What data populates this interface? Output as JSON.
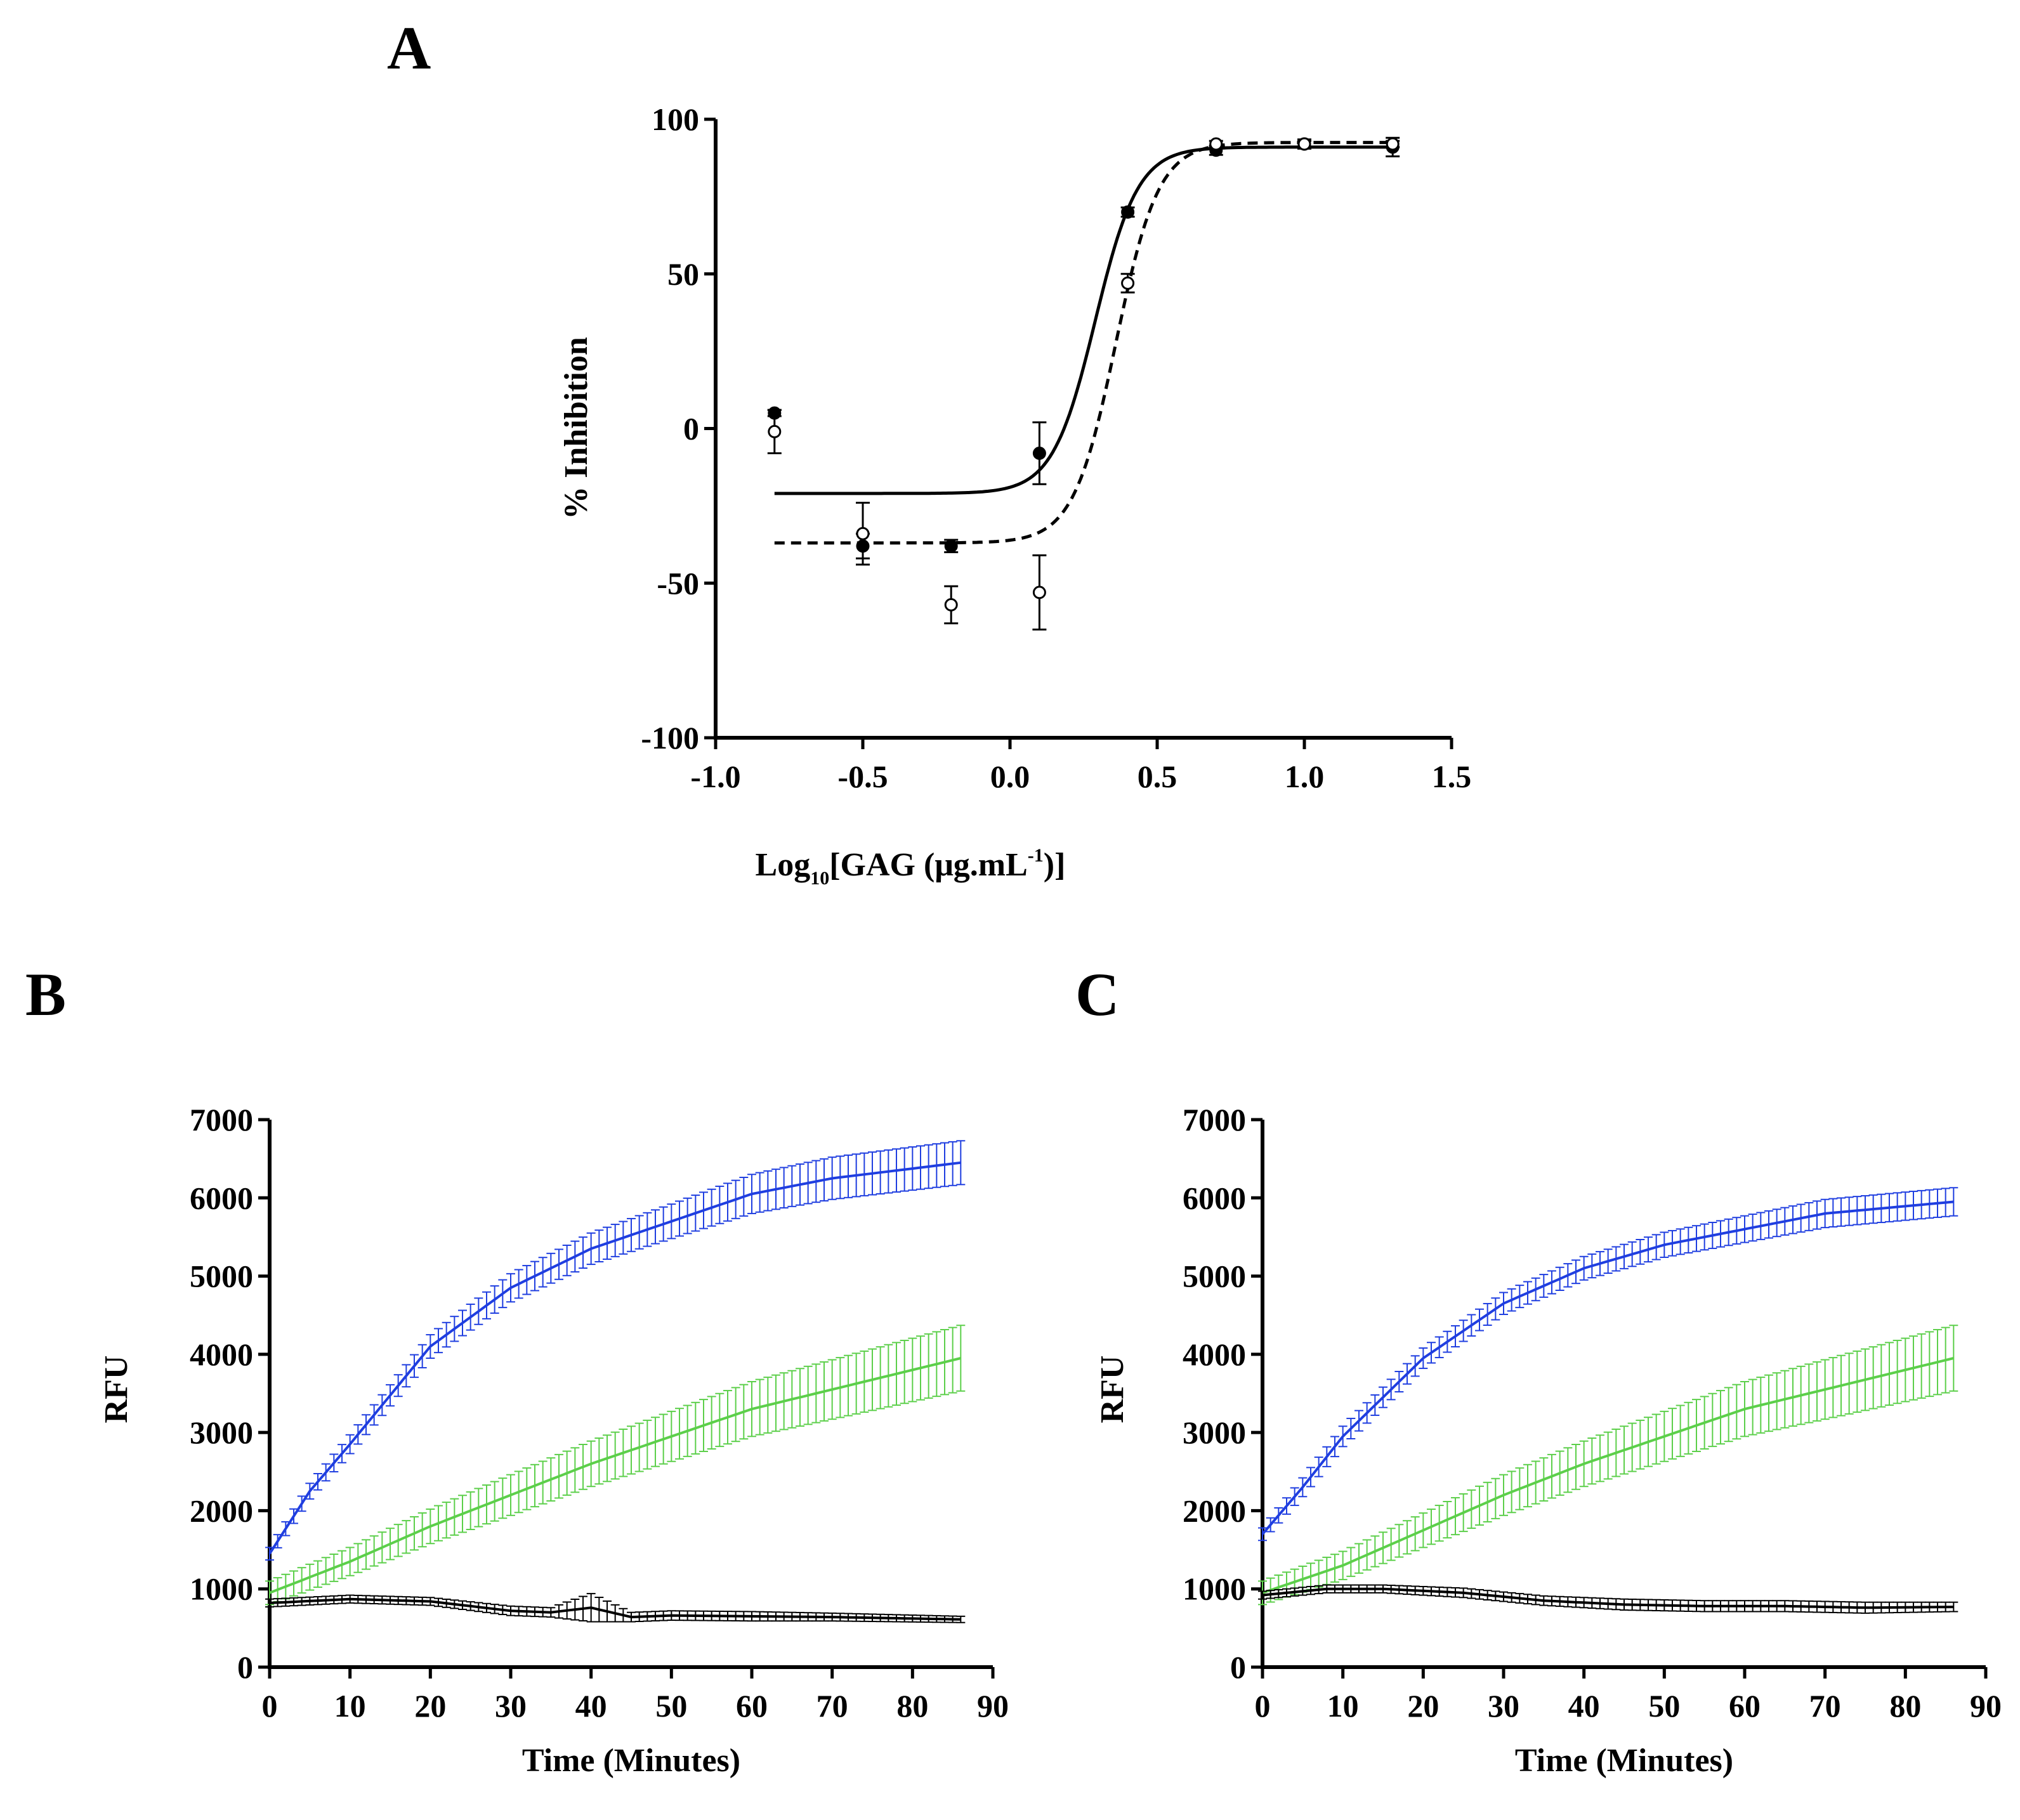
{
  "figure": {
    "colors": {
      "axis": "#000000",
      "blue": "#1f3ee0",
      "green": "#5ccf4a",
      "black": "#000000"
    }
  },
  "chart_data": [
    {
      "panel": "A",
      "type": "scatter",
      "title": "",
      "xlabel": {
        "prefix": "Log",
        "subscript": "10",
        "main": "[GAG (μg.mL",
        "superscript": "-1",
        "suffix": ")]"
      },
      "ylabel": "% Inhibition",
      "xlim": [
        -1.0,
        1.5
      ],
      "ylim": [
        -100,
        100
      ],
      "xticks": [
        -1.0,
        -0.5,
        0.0,
        0.5,
        1.0,
        1.5
      ],
      "xtick_labels": [
        "-1.0",
        "-0.5",
        "0.0",
        "0.5",
        "1.0",
        "1.5"
      ],
      "yticks": [
        -100,
        -50,
        0,
        50,
        100
      ],
      "ytick_labels": [
        "-100",
        "-50",
        "0",
        "50",
        "100"
      ],
      "series": [
        {
          "name": "filled",
          "marker": "filled-circle",
          "line": "solid",
          "x": [
            -0.8,
            -0.5,
            -0.2,
            0.1,
            0.4,
            0.7,
            1.0,
            1.3
          ],
          "y": [
            5,
            -38,
            -38,
            -8,
            70,
            90,
            92,
            91
          ],
          "err": [
            1,
            4,
            2,
            10,
            1.5,
            1.5,
            1.5,
            3
          ],
          "fit": {
            "bottom": -21,
            "top": 91,
            "logEC50": 0.29,
            "hill": 6
          }
        },
        {
          "name": "open",
          "marker": "open-circle",
          "line": "dashed",
          "x": [
            -0.8,
            -0.5,
            -0.2,
            0.1,
            0.4,
            0.7,
            1.0,
            1.3
          ],
          "y": [
            -1,
            -34,
            -57,
            -53,
            47,
            92,
            92,
            92
          ],
          "err": [
            7,
            10,
            6,
            12,
            3,
            1,
            1,
            1
          ],
          "fit": {
            "bottom": -37,
            "top": 92.5,
            "logEC50": 0.36,
            "hill": 6
          }
        }
      ]
    },
    {
      "panel": "B",
      "type": "line",
      "title": "",
      "xlabel": "Time (Minutes)",
      "ylabel": "RFU",
      "xlim": [
        0,
        90
      ],
      "ylim": [
        0,
        7000
      ],
      "xticks": [
        0,
        10,
        20,
        30,
        40,
        50,
        60,
        70,
        80,
        90
      ],
      "xtick_labels": [
        "0",
        "10",
        "20",
        "30",
        "40",
        "50",
        "60",
        "70",
        "80",
        "90"
      ],
      "yticks": [
        0,
        1000,
        2000,
        3000,
        4000,
        5000,
        6000,
        7000
      ],
      "ytick_labels": [
        "0",
        "1000",
        "2000",
        "3000",
        "4000",
        "5000",
        "6000",
        "7000"
      ],
      "x_step": 1,
      "series": [
        {
          "name": "blue",
          "color": "blue",
          "key_x": [
            0,
            5,
            10,
            20,
            30,
            40,
            50,
            60,
            70,
            86
          ],
          "key_y": [
            1450,
            2250,
            2850,
            4100,
            4850,
            5350,
            5700,
            6050,
            6250,
            6450
          ],
          "key_err": [
            80,
            100,
            120,
            150,
            180,
            200,
            220,
            250,
            270,
            280
          ]
        },
        {
          "name": "green",
          "color": "green",
          "key_x": [
            0,
            10,
            20,
            30,
            40,
            50,
            60,
            70,
            86
          ],
          "key_y": [
            950,
            1350,
            1800,
            2200,
            2600,
            2950,
            3300,
            3550,
            3950
          ],
          "key_err": [
            150,
            180,
            220,
            260,
            290,
            320,
            350,
            380,
            420
          ]
        },
        {
          "name": "black",
          "color": "black",
          "key_x": [
            0,
            10,
            20,
            30,
            35,
            40,
            45,
            50,
            60,
            70,
            86
          ],
          "key_y": [
            820,
            870,
            840,
            720,
            700,
            760,
            640,
            660,
            650,
            640,
            610
          ],
          "key_err": [
            50,
            50,
            50,
            60,
            60,
            180,
            60,
            60,
            60,
            50,
            40
          ]
        }
      ]
    },
    {
      "panel": "C",
      "type": "line",
      "title": "",
      "xlabel": "Time (Minutes)",
      "ylabel": "RFU",
      "xlim": [
        0,
        90
      ],
      "ylim": [
        0,
        7000
      ],
      "xticks": [
        0,
        10,
        20,
        30,
        40,
        50,
        60,
        70,
        80,
        90
      ],
      "xtick_labels": [
        "0",
        "10",
        "20",
        "30",
        "40",
        "50",
        "60",
        "70",
        "80",
        "90"
      ],
      "yticks": [
        0,
        1000,
        2000,
        3000,
        4000,
        5000,
        6000,
        7000
      ],
      "ytick_labels": [
        "0",
        "1000",
        "2000",
        "3000",
        "4000",
        "5000",
        "6000",
        "7000"
      ],
      "x_step": 1,
      "series": [
        {
          "name": "blue",
          "color": "blue",
          "key_x": [
            0,
            5,
            10,
            20,
            30,
            40,
            50,
            60,
            70,
            86
          ],
          "key_y": [
            1700,
            2300,
            2950,
            3950,
            4650,
            5100,
            5400,
            5600,
            5800,
            5950
          ],
          "key_err": [
            80,
            120,
            130,
            130,
            140,
            150,
            160,
            170,
            180,
            180
          ]
        },
        {
          "name": "green",
          "color": "green",
          "key_x": [
            0,
            10,
            20,
            30,
            40,
            50,
            60,
            70,
            86
          ],
          "key_y": [
            950,
            1300,
            1750,
            2200,
            2600,
            2950,
            3300,
            3550,
            3950
          ],
          "key_err": [
            150,
            180,
            220,
            260,
            290,
            320,
            350,
            380,
            420
          ]
        },
        {
          "name": "black",
          "color": "black",
          "key_x": [
            0,
            8,
            15,
            25,
            35,
            45,
            55,
            65,
            75,
            86
          ],
          "key_y": [
            920,
            1000,
            1000,
            950,
            850,
            800,
            780,
            780,
            760,
            770
          ],
          "key_err": [
            50,
            50,
            50,
            60,
            60,
            70,
            70,
            70,
            70,
            60
          ]
        }
      ]
    }
  ]
}
